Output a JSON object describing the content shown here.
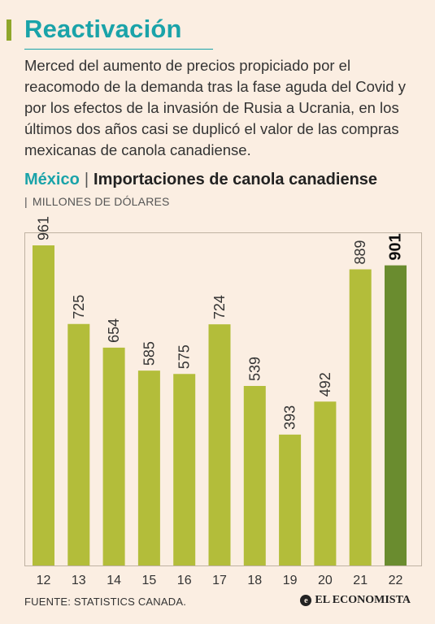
{
  "header": {
    "title": "Reactivación",
    "intro": "Merced del aumento de precios propiciado por el reacomodo de la demanda tras la fase aguda del Covid y por los efectos de la invasión de Rusia a Ucrania, en los últimos dos años casi se duplicó el valor de las compras mexicanas de canola canadiense."
  },
  "chart_header": {
    "country": "México",
    "separator": "|",
    "title": "Importaciones de canola canadiense",
    "subtitle": "MILLONES DE DÓLARES"
  },
  "footer": {
    "source": "FUENTE: STATISTICS CANADA.",
    "brand": "EL ECONOMISTA",
    "brand_logo": "e"
  },
  "colors": {
    "accent": "#1aa3a9",
    "bar": "#b3bd3a",
    "highlight_bar": "#6a8c2f",
    "background": "#fbeee2"
  },
  "chart_data": {
    "type": "bar",
    "categories": [
      "12",
      "13",
      "14",
      "15",
      "16",
      "17",
      "18",
      "19",
      "20",
      "21",
      "22"
    ],
    "values": [
      961,
      725,
      654,
      585,
      575,
      724,
      539,
      393,
      492,
      889,
      901
    ],
    "data_labels": [
      "961",
      "725",
      "654",
      "585",
      "575",
      "724",
      "539",
      "393",
      "492",
      "889",
      "901"
    ],
    "highlight_index": 10,
    "ylim": [
      0,
      1000
    ],
    "grid": false,
    "legend": "none"
  }
}
